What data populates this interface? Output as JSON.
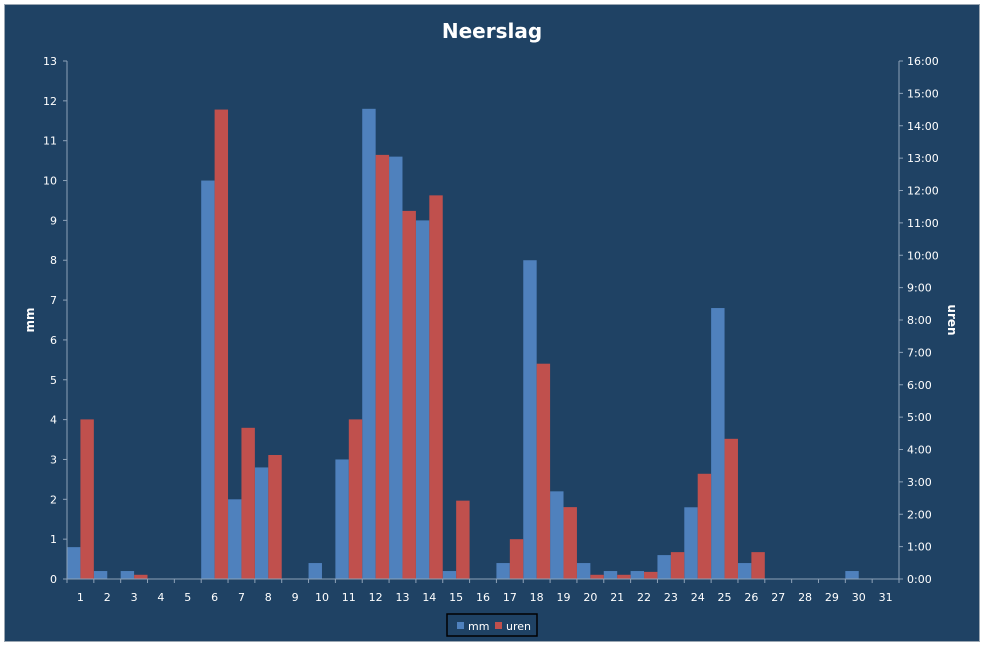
{
  "chart_data": {
    "type": "bar",
    "title": "Neerslag",
    "xlabel": "",
    "ylabel": "mm",
    "y2label": "uren",
    "categories": [
      "1",
      "2",
      "3",
      "4",
      "5",
      "6",
      "7",
      "8",
      "9",
      "10",
      "11",
      "12",
      "13",
      "14",
      "15",
      "16",
      "17",
      "18",
      "19",
      "20",
      "21",
      "22",
      "23",
      "24",
      "25",
      "26",
      "27",
      "28",
      "29",
      "30",
      "31"
    ],
    "ylim": [
      0,
      13
    ],
    "y2lim": [
      0,
      16
    ],
    "y_ticks": [
      "0",
      "1",
      "2",
      "3",
      "4",
      "5",
      "6",
      "7",
      "8",
      "9",
      "10",
      "11",
      "12",
      "13"
    ],
    "y2_ticks": [
      "0:00",
      "1:00",
      "2:00",
      "3:00",
      "4:00",
      "5:00",
      "6:00",
      "7:00",
      "8:00",
      "9:00",
      "10:00",
      "11:00",
      "12:00",
      "13:00",
      "14:00",
      "15:00",
      "16:00"
    ],
    "series": [
      {
        "name": "mm",
        "axis": "left",
        "color": "#4f81bd",
        "values": [
          0.8,
          0.2,
          0.2,
          0,
          0,
          10.0,
          2.0,
          2.8,
          0,
          0.4,
          3.0,
          11.8,
          10.6,
          9.0,
          0.2,
          0,
          0.4,
          8.0,
          2.2,
          0.4,
          0.2,
          0.2,
          0.6,
          1.8,
          6.8,
          0.4,
          0,
          0,
          0,
          0.2,
          0
        ]
      },
      {
        "name": "uren",
        "axis": "right",
        "color": "#c0504d",
        "values": [
          4.93,
          0,
          0.13,
          0,
          0,
          14.5,
          4.67,
          3.83,
          0,
          0,
          4.93,
          13.1,
          11.37,
          11.85,
          2.42,
          0,
          1.23,
          6.65,
          2.22,
          0.13,
          0.13,
          0.22,
          0.83,
          3.25,
          4.33,
          0.83,
          0,
          0,
          0,
          0,
          0
        ]
      }
    ],
    "legend_position": "bottom",
    "grid": false
  }
}
